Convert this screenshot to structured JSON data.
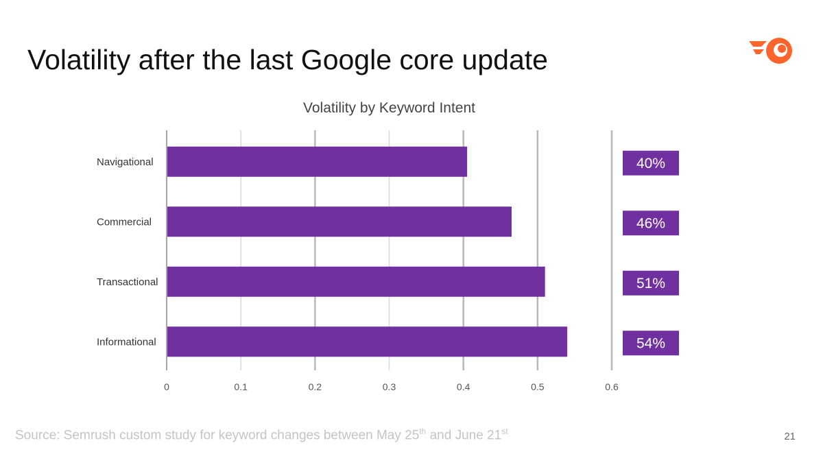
{
  "slide": {
    "title": "Volatility after the last Google core update",
    "page_number": "21"
  },
  "logo": {
    "icon": "semrush-logo-icon",
    "color": "#ff642d"
  },
  "source": {
    "prefix": "Source: Semrush custom study for keyword changes between May 25",
    "sup1": "th",
    "middle": " and June 21",
    "sup2": "st"
  },
  "chart_data": {
    "type": "bar",
    "orientation": "horizontal",
    "title": "Volatility by Keyword Intent",
    "xlabel": "",
    "ylabel": "",
    "categories": [
      "Navigational",
      "Commercial",
      "Transactional",
      "Informational"
    ],
    "values": [
      0.405,
      0.465,
      0.51,
      0.54
    ],
    "value_labels": [
      "40%",
      "46%",
      "51%",
      "54%"
    ],
    "xlim": [
      0,
      0.6
    ],
    "ticks": [
      0,
      0.1,
      0.2,
      0.3,
      0.4,
      0.5,
      0.6
    ],
    "tick_labels": [
      "0",
      "0.1",
      "0.2",
      "0.3",
      "0.4",
      "0.5",
      "0.6"
    ],
    "grid": true,
    "legend": "none",
    "bar_color": "#7030a0",
    "badge_color": "#7030a0"
  }
}
